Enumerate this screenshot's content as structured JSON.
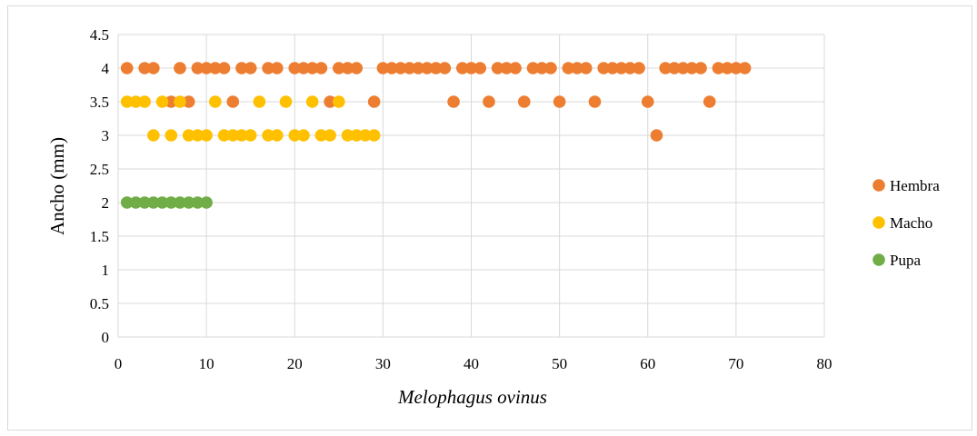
{
  "chart_data": {
    "type": "scatter",
    "title": "",
    "xlabel": "Melophagus ovinus",
    "ylabel": "Ancho  (mm)",
    "xlim": [
      0,
      80
    ],
    "ylim": [
      0,
      4.5
    ],
    "x_ticks": [
      "0",
      "10",
      "20",
      "30",
      "40",
      "50",
      "60",
      "70",
      "80"
    ],
    "y_ticks": [
      "0",
      "0.5",
      "1",
      "1.5",
      "2",
      "2.5",
      "3",
      "3.5",
      "4",
      "4.5"
    ],
    "grid": "both",
    "legend_position": "right",
    "series": [
      {
        "name": "Hembra",
        "color": "#ed7d31",
        "points": [
          [
            1,
            4
          ],
          [
            3,
            4
          ],
          [
            4,
            4
          ],
          [
            7,
            4
          ],
          [
            9,
            4
          ],
          [
            10,
            4
          ],
          [
            11,
            4
          ],
          [
            12,
            4
          ],
          [
            14,
            4
          ],
          [
            15,
            4
          ],
          [
            17,
            4
          ],
          [
            18,
            4
          ],
          [
            20,
            4
          ],
          [
            21,
            4
          ],
          [
            22,
            4
          ],
          [
            23,
            4
          ],
          [
            25,
            4
          ],
          [
            26,
            4
          ],
          [
            27,
            4
          ],
          [
            30,
            4
          ],
          [
            31,
            4
          ],
          [
            32,
            4
          ],
          [
            33,
            4
          ],
          [
            34,
            4
          ],
          [
            35,
            4
          ],
          [
            36,
            4
          ],
          [
            37,
            4
          ],
          [
            39,
            4
          ],
          [
            40,
            4
          ],
          [
            41,
            4
          ],
          [
            43,
            4
          ],
          [
            44,
            4
          ],
          [
            45,
            4
          ],
          [
            47,
            4
          ],
          [
            48,
            4
          ],
          [
            49,
            4
          ],
          [
            51,
            4
          ],
          [
            52,
            4
          ],
          [
            53,
            4
          ],
          [
            55,
            4
          ],
          [
            56,
            4
          ],
          [
            57,
            4
          ],
          [
            58,
            4
          ],
          [
            59,
            4
          ],
          [
            62,
            4
          ],
          [
            63,
            4
          ],
          [
            64,
            4
          ],
          [
            65,
            4
          ],
          [
            66,
            4
          ],
          [
            68,
            4
          ],
          [
            69,
            4
          ],
          [
            70,
            4
          ],
          [
            71,
            4
          ],
          [
            6,
            3.5
          ],
          [
            8,
            3.5
          ],
          [
            13,
            3.5
          ],
          [
            24,
            3.5
          ],
          [
            29,
            3.5
          ],
          [
            38,
            3.5
          ],
          [
            42,
            3.5
          ],
          [
            46,
            3.5
          ],
          [
            50,
            3.5
          ],
          [
            54,
            3.5
          ],
          [
            60,
            3.5
          ],
          [
            67,
            3.5
          ],
          [
            61,
            3
          ]
        ]
      },
      {
        "name": "Macho",
        "color": "#ffc000",
        "points": [
          [
            1,
            3.5
          ],
          [
            2,
            3.5
          ],
          [
            3,
            3.5
          ],
          [
            5,
            3.5
          ],
          [
            7,
            3.5
          ],
          [
            11,
            3.5
          ],
          [
            16,
            3.5
          ],
          [
            19,
            3.5
          ],
          [
            22,
            3.5
          ],
          [
            25,
            3.5
          ],
          [
            4,
            3
          ],
          [
            6,
            3
          ],
          [
            8,
            3
          ],
          [
            9,
            3
          ],
          [
            10,
            3
          ],
          [
            12,
            3
          ],
          [
            13,
            3
          ],
          [
            14,
            3
          ],
          [
            15,
            3
          ],
          [
            17,
            3
          ],
          [
            18,
            3
          ],
          [
            20,
            3
          ],
          [
            21,
            3
          ],
          [
            23,
            3
          ],
          [
            24,
            3
          ],
          [
            26,
            3
          ],
          [
            27,
            3
          ],
          [
            28,
            3
          ],
          [
            29,
            3
          ]
        ]
      },
      {
        "name": "Pupa",
        "color": "#70ad47",
        "points": [
          [
            1,
            2
          ],
          [
            2,
            2
          ],
          [
            3,
            2
          ],
          [
            4,
            2
          ],
          [
            5,
            2
          ],
          [
            6,
            2
          ],
          [
            7,
            2
          ],
          [
            8,
            2
          ],
          [
            9,
            2
          ],
          [
            10,
            2
          ]
        ]
      }
    ]
  }
}
